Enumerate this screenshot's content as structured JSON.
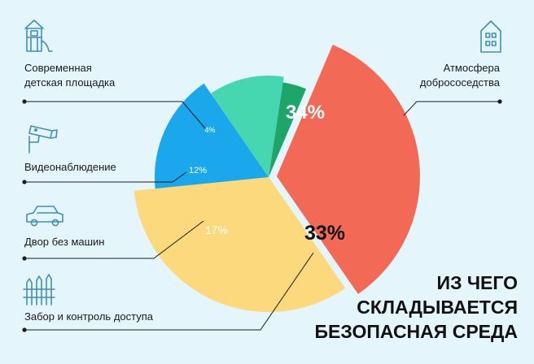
{
  "chart_data": {
    "type": "pie",
    "title_lines": [
      "ИЗ ЧЕГО",
      "СКЛАДЫВАЕТСЯ",
      "БЕЗОПАСНАЯ СРЕДА"
    ],
    "slices": [
      {
        "lines": [
          "Атмосфера",
          "добрососедства"
        ],
        "value": 34,
        "label": "34%",
        "color": "#f26a55",
        "exploded": true
      },
      {
        "lines": [
          "Забор и контроль доступа"
        ],
        "value": 33,
        "label": "33%",
        "color": "#fbd97c",
        "exploded": false
      },
      {
        "lines": [
          "Двор без машин"
        ],
        "value": 17,
        "label": "17%",
        "color": "#1aa7ec",
        "exploded": false
      },
      {
        "lines": [
          "Видеонаблюдение"
        ],
        "value": 12,
        "label": "12%",
        "color": "#46d6b0",
        "exploded": false
      },
      {
        "lines": [
          "Современная",
          "детская площадка"
        ],
        "value": 4,
        "label": "4%",
        "color": "#1ea56a",
        "exploded": false
      }
    ]
  },
  "icons": [
    "playground-icon",
    "camera-icon",
    "car-icon",
    "fence-icon",
    "house-icon"
  ]
}
